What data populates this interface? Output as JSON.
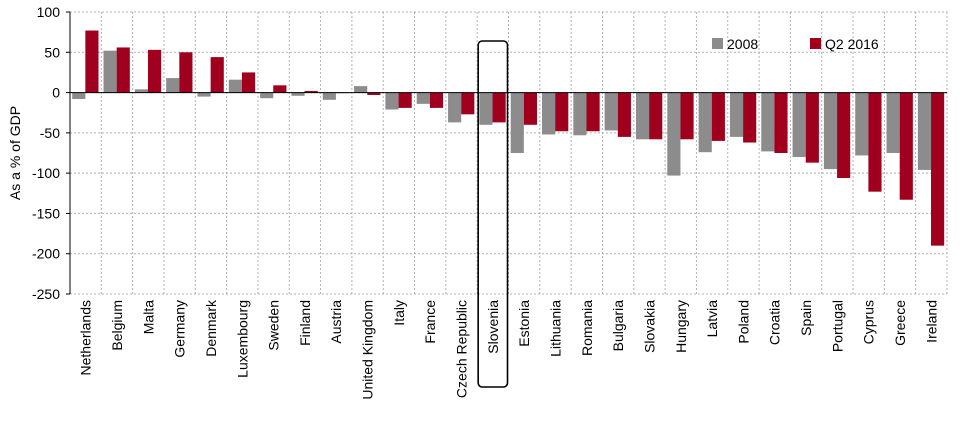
{
  "chart_data": {
    "type": "bar",
    "ylabel": "As a % of GDP",
    "ylim": [
      -250,
      100
    ],
    "yticks": [
      100,
      50,
      0,
      -50,
      -100,
      -150,
      -200,
      -250
    ],
    "grid": true,
    "legend_position": "top-right",
    "highlight_category": "Slovenia",
    "categories": [
      "Netherlands",
      "Belgium",
      "Malta",
      "Germany",
      "Denmark",
      "Luxembourg",
      "Sweden",
      "Finland",
      "Austria",
      "United Kingdom",
      "Italy",
      "France",
      "Czech Republic",
      "Slovenia",
      "Estonia",
      "Lithuania",
      "Romania",
      "Bulgaria",
      "Slovakia",
      "Hungary",
      "Latvia",
      "Poland",
      "Croatia",
      "Spain",
      "Portugal",
      "Cyprus",
      "Greece",
      "Ireland"
    ],
    "series": [
      {
        "name": "2008",
        "color": "#8c8c8c",
        "values": [
          -8,
          52,
          4,
          18,
          -5,
          16,
          -7,
          -4,
          -9,
          8,
          -21,
          -14,
          -37,
          -40,
          -75,
          -52,
          -53,
          -47,
          -58,
          -103,
          -74,
          -55,
          -73,
          -80,
          -95,
          -78,
          -75,
          -96
        ]
      },
      {
        "name": "Q2 2016",
        "color": "#a0001e",
        "values": [
          77,
          56,
          53,
          50,
          44,
          25,
          9,
          2,
          0,
          -3,
          -19,
          -19,
          -27,
          -37,
          -40,
          -48,
          -48,
          -55,
          -58,
          -58,
          -60,
          -62,
          -75,
          -87,
          -106,
          -123,
          -133,
          -190
        ]
      }
    ]
  }
}
